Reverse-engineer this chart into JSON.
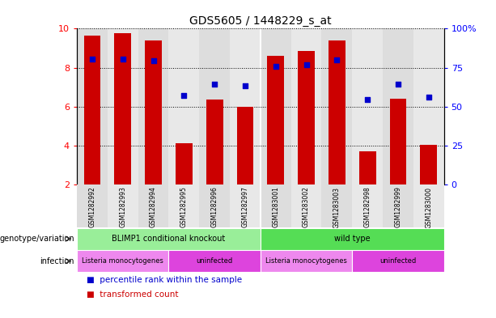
{
  "title": "GDS5605 / 1448229_s_at",
  "samples": [
    "GSM1282992",
    "GSM1282993",
    "GSM1282994",
    "GSM1282995",
    "GSM1282996",
    "GSM1282997",
    "GSM1283001",
    "GSM1283002",
    "GSM1283003",
    "GSM1282998",
    "GSM1282999",
    "GSM1283000"
  ],
  "bar_values": [
    9.65,
    9.75,
    9.4,
    4.1,
    6.35,
    6.0,
    8.6,
    8.85,
    9.4,
    3.7,
    6.4,
    4.05
  ],
  "dot_values": [
    8.45,
    8.45,
    8.35,
    6.55,
    7.15,
    7.05,
    8.05,
    8.15,
    8.4,
    6.35,
    7.15,
    6.5
  ],
  "bar_bottom": 2.0,
  "ylim_left": [
    2.0,
    10.0
  ],
  "ylim_right": [
    0,
    100
  ],
  "yticks_left": [
    2,
    4,
    6,
    8,
    10
  ],
  "yticks_right": [
    0,
    25,
    50,
    75,
    100
  ],
  "right_tick_labels": [
    "0",
    "25",
    "50",
    "75",
    "100%"
  ],
  "bar_color": "#cc0000",
  "dot_color": "#0000cc",
  "bg_color": "#e8e8e8",
  "genotype_groups": [
    {
      "text": "BLIMP1 conditional knockout",
      "start": 0,
      "end": 6,
      "color": "#99ee99"
    },
    {
      "text": "wild type",
      "start": 6,
      "end": 12,
      "color": "#55dd55"
    }
  ],
  "infection_groups": [
    {
      "text": "Listeria monocytogenes",
      "start": 0,
      "end": 3,
      "color": "#ee88ee"
    },
    {
      "text": "uninfected",
      "start": 3,
      "end": 6,
      "color": "#dd44dd"
    },
    {
      "text": "Listeria monocytogenes",
      "start": 6,
      "end": 9,
      "color": "#ee88ee"
    },
    {
      "text": "uninfected",
      "start": 9,
      "end": 12,
      "color": "#dd44dd"
    }
  ],
  "genotype_label": "genotype/variation",
  "infection_label": "infection",
  "legend_items": [
    {
      "label": "transformed count",
      "color": "#cc0000"
    },
    {
      "label": "percentile rank within the sample",
      "color": "#0000cc"
    }
  ]
}
